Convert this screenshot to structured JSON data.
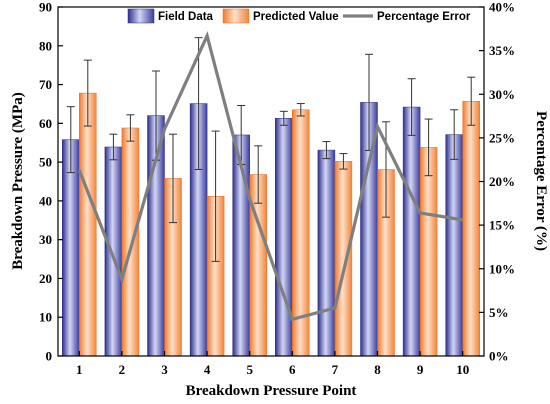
{
  "chart_data": {
    "type": "bar",
    "categories": [
      "1",
      "2",
      "3",
      "4",
      "5",
      "6",
      "7",
      "8",
      "9",
      "10"
    ],
    "xlabel": "Breakdown Pressure Point",
    "ylabel": "Breakdown Pressure (MPa)",
    "y2label": "Percentage Error (%)",
    "ylim": [
      0,
      90
    ],
    "yticks": [
      "0",
      "10",
      "20",
      "30",
      "40",
      "50",
      "60",
      "70",
      "80",
      "90"
    ],
    "y2lim": [
      0,
      40
    ],
    "y2ticks": [
      "0%",
      "5%",
      "10%",
      "15%",
      "20%",
      "25%",
      "30%",
      "35%",
      "40%"
    ],
    "legend_position": "top",
    "series": [
      {
        "name": "Field Data",
        "kind": "bar",
        "color": "#4b4fb8",
        "values": [
          55.8,
          53.9,
          62.0,
          65.1,
          57.0,
          61.3,
          53.1,
          65.4,
          64.2,
          57.1
        ],
        "error": [
          8.5,
          3.3,
          11.5,
          17.0,
          7.6,
          1.8,
          2.2,
          12.4,
          7.3,
          6.4
        ]
      },
      {
        "name": "Predicted Value",
        "kind": "bar",
        "color": "#f79552",
        "values": [
          67.8,
          58.8,
          45.8,
          41.2,
          46.8,
          63.5,
          50.2,
          48.1,
          53.8,
          65.7
        ],
        "error": [
          8.5,
          3.4,
          11.4,
          16.8,
          7.4,
          1.6,
          2.0,
          12.3,
          7.3,
          6.2
        ]
      },
      {
        "name": "Percentage Error",
        "kind": "line",
        "axis": "right",
        "color": "#7f7f7f",
        "values": [
          21.3,
          8.8,
          26.0,
          36.7,
          18.0,
          4.2,
          5.5,
          26.3,
          16.4,
          15.6
        ]
      }
    ]
  }
}
